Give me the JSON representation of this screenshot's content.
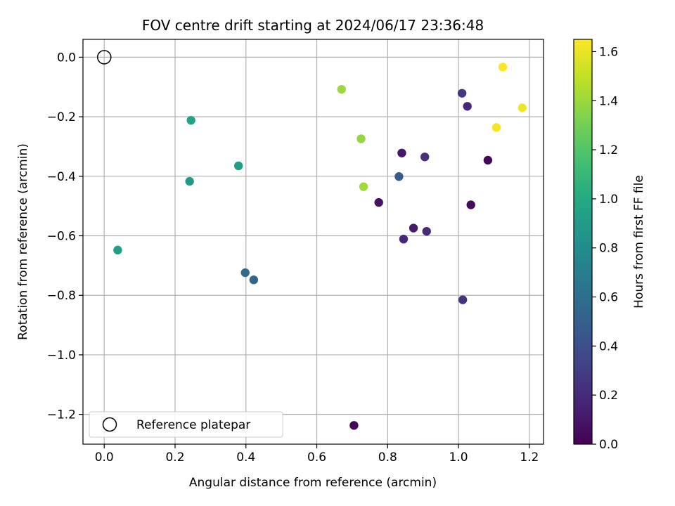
{
  "chart_data": {
    "type": "scatter",
    "title": "FOV centre drift starting at 2024/06/17 23:36:48",
    "xlabel": "Angular distance from reference (arcmin)",
    "ylabel": "Rotation from reference (arcmin)",
    "xlim": [
      -0.06,
      1.24
    ],
    "ylim": [
      -1.3,
      0.06
    ],
    "xticks": [
      0.0,
      0.2,
      0.4,
      0.6,
      0.8,
      1.0,
      1.2
    ],
    "yticks": [
      0.0,
      -0.2,
      -0.4,
      -0.6,
      -0.8,
      -1.0,
      -1.2
    ],
    "xtick_labels": [
      "0.0",
      "0.2",
      "0.4",
      "0.6",
      "0.8",
      "1.0",
      "1.2"
    ],
    "ytick_labels": [
      "0.0",
      "−0.2",
      "−0.4",
      "−0.6",
      "−0.8",
      "−1.0",
      "−1.2"
    ],
    "grid": true,
    "legend": {
      "placement": "lower-left",
      "entries": [
        "Reference platepar"
      ]
    },
    "reference_point": {
      "x": 0.0,
      "y": 0.0
    },
    "colorbar": {
      "label": "Hours from first FF file",
      "range": [
        0.0,
        1.65
      ],
      "ticks": [
        0.0,
        0.2,
        0.4,
        0.6,
        0.8,
        1.0,
        1.2,
        1.4,
        1.6
      ],
      "tick_labels": [
        "0.0",
        "0.2",
        "0.4",
        "0.6",
        "0.8",
        "1.0",
        "1.2",
        "1.4",
        "1.6"
      ],
      "colormap": "viridis"
    },
    "points": [
      {
        "x": 0.705,
        "y": -1.237,
        "c": 0.02
      },
      {
        "x": 0.775,
        "y": -0.488,
        "c": 0.08
      },
      {
        "x": 0.84,
        "y": -0.322,
        "c": 0.1
      },
      {
        "x": 1.035,
        "y": -0.496,
        "c": 0.05
      },
      {
        "x": 1.083,
        "y": -0.346,
        "c": 0.03
      },
      {
        "x": 0.873,
        "y": -0.574,
        "c": 0.12
      },
      {
        "x": 0.845,
        "y": -0.611,
        "c": 0.18
      },
      {
        "x": 0.91,
        "y": -0.585,
        "c": 0.2
      },
      {
        "x": 0.905,
        "y": -0.335,
        "c": 0.22
      },
      {
        "x": 1.012,
        "y": -0.815,
        "c": 0.24
      },
      {
        "x": 1.01,
        "y": -0.121,
        "c": 0.26
      },
      {
        "x": 1.025,
        "y": -0.165,
        "c": 0.18
      },
      {
        "x": 0.832,
        "y": -0.401,
        "c": 0.48
      },
      {
        "x": 0.398,
        "y": -0.724,
        "c": 0.58
      },
      {
        "x": 0.422,
        "y": -0.748,
        "c": 0.55
      },
      {
        "x": 0.245,
        "y": -0.212,
        "c": 0.95
      },
      {
        "x": 0.241,
        "y": -0.417,
        "c": 0.9
      },
      {
        "x": 0.379,
        "y": -0.365,
        "c": 0.92
      },
      {
        "x": 0.038,
        "y": -0.648,
        "c": 0.93
      },
      {
        "x": 0.67,
        "y": -0.108,
        "c": 1.4
      },
      {
        "x": 0.725,
        "y": -0.274,
        "c": 1.38
      },
      {
        "x": 0.732,
        "y": -0.435,
        "c": 1.41
      },
      {
        "x": 1.125,
        "y": -0.033,
        "c": 1.64
      },
      {
        "x": 1.18,
        "y": -0.17,
        "c": 1.62
      },
      {
        "x": 1.107,
        "y": -0.236,
        "c": 1.63
      }
    ]
  }
}
